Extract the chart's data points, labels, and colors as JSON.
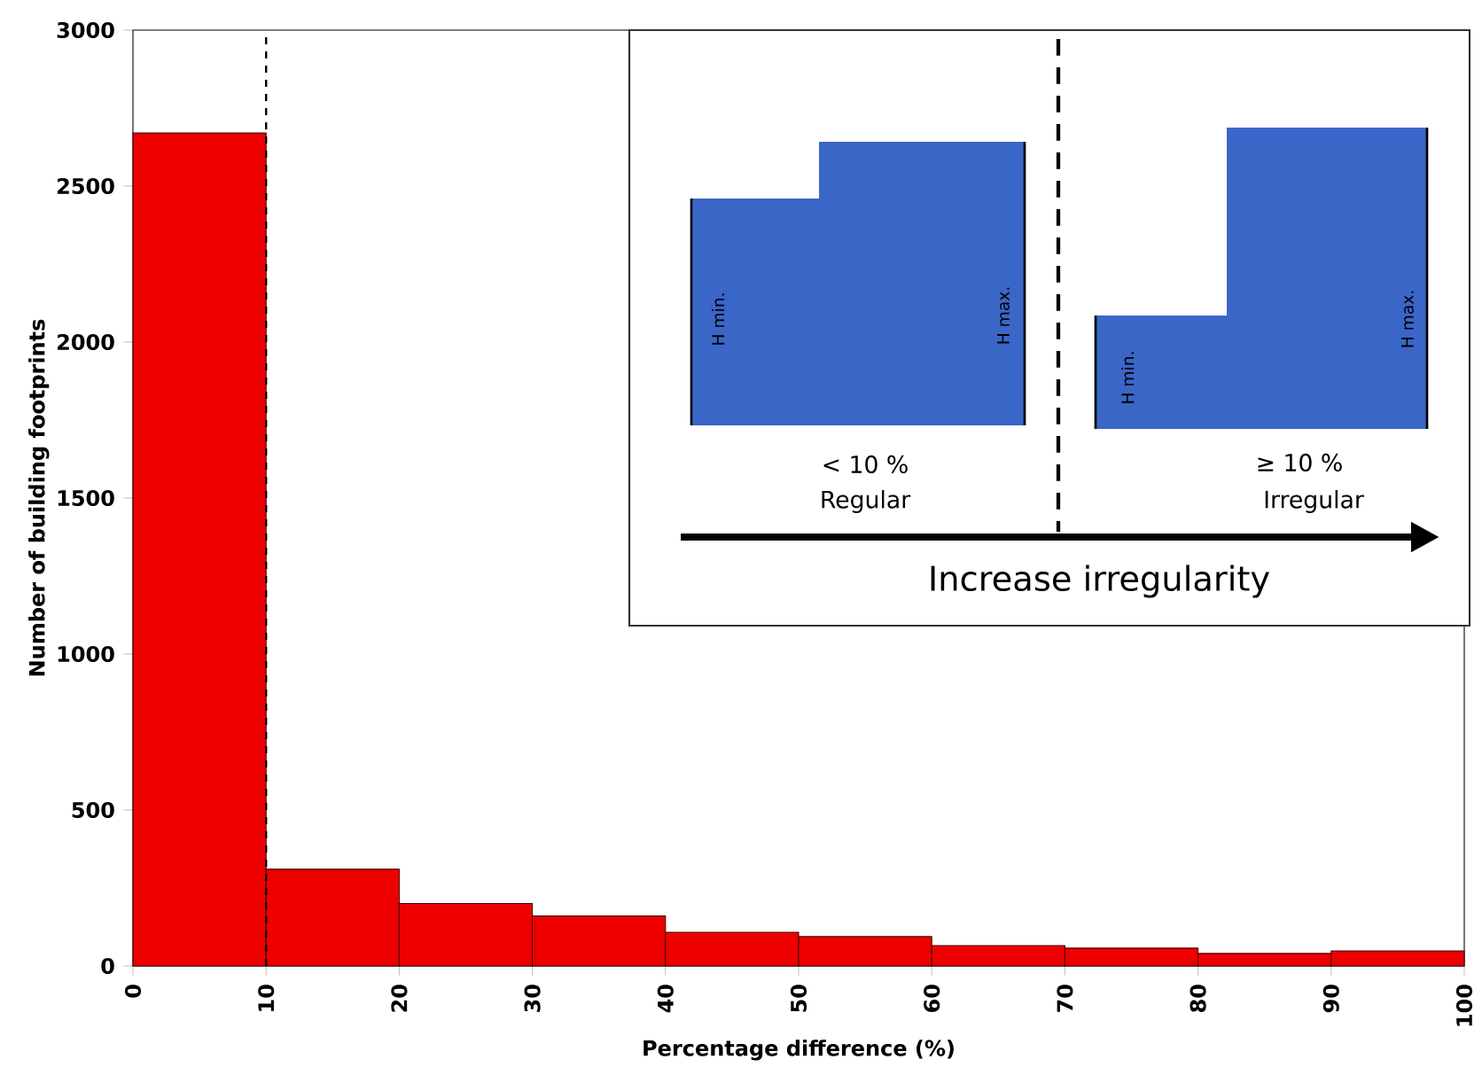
{
  "chart_data": {
    "type": "histogram",
    "xlabel": "Percentage difference (%)",
    "ylabel": "Number of building footprints",
    "bins": [
      0,
      10,
      20,
      30,
      40,
      50,
      60,
      70,
      80,
      90,
      100
    ],
    "values": [
      2670,
      310,
      200,
      160,
      108,
      94,
      65,
      57,
      40,
      48
    ],
    "color": "#ee0000",
    "xlim": [
      0,
      100
    ],
    "ylim": [
      0,
      3000
    ],
    "xticks": [
      0,
      10,
      20,
      30,
      40,
      50,
      60,
      70,
      80,
      90,
      100
    ],
    "yticks": [
      0,
      500,
      1000,
      1500,
      2000,
      2500,
      3000
    ],
    "ref_lines": [
      {
        "axis": "x",
        "value": 10,
        "color": "#000000",
        "line_style": "dashed"
      }
    ],
    "annotations": [
      "H min.",
      "H max.",
      "H min.",
      "H max.",
      "< 10 %",
      "Regular",
      "≥ 10 %",
      "Irregular",
      "Increase irregularity"
    ]
  }
}
